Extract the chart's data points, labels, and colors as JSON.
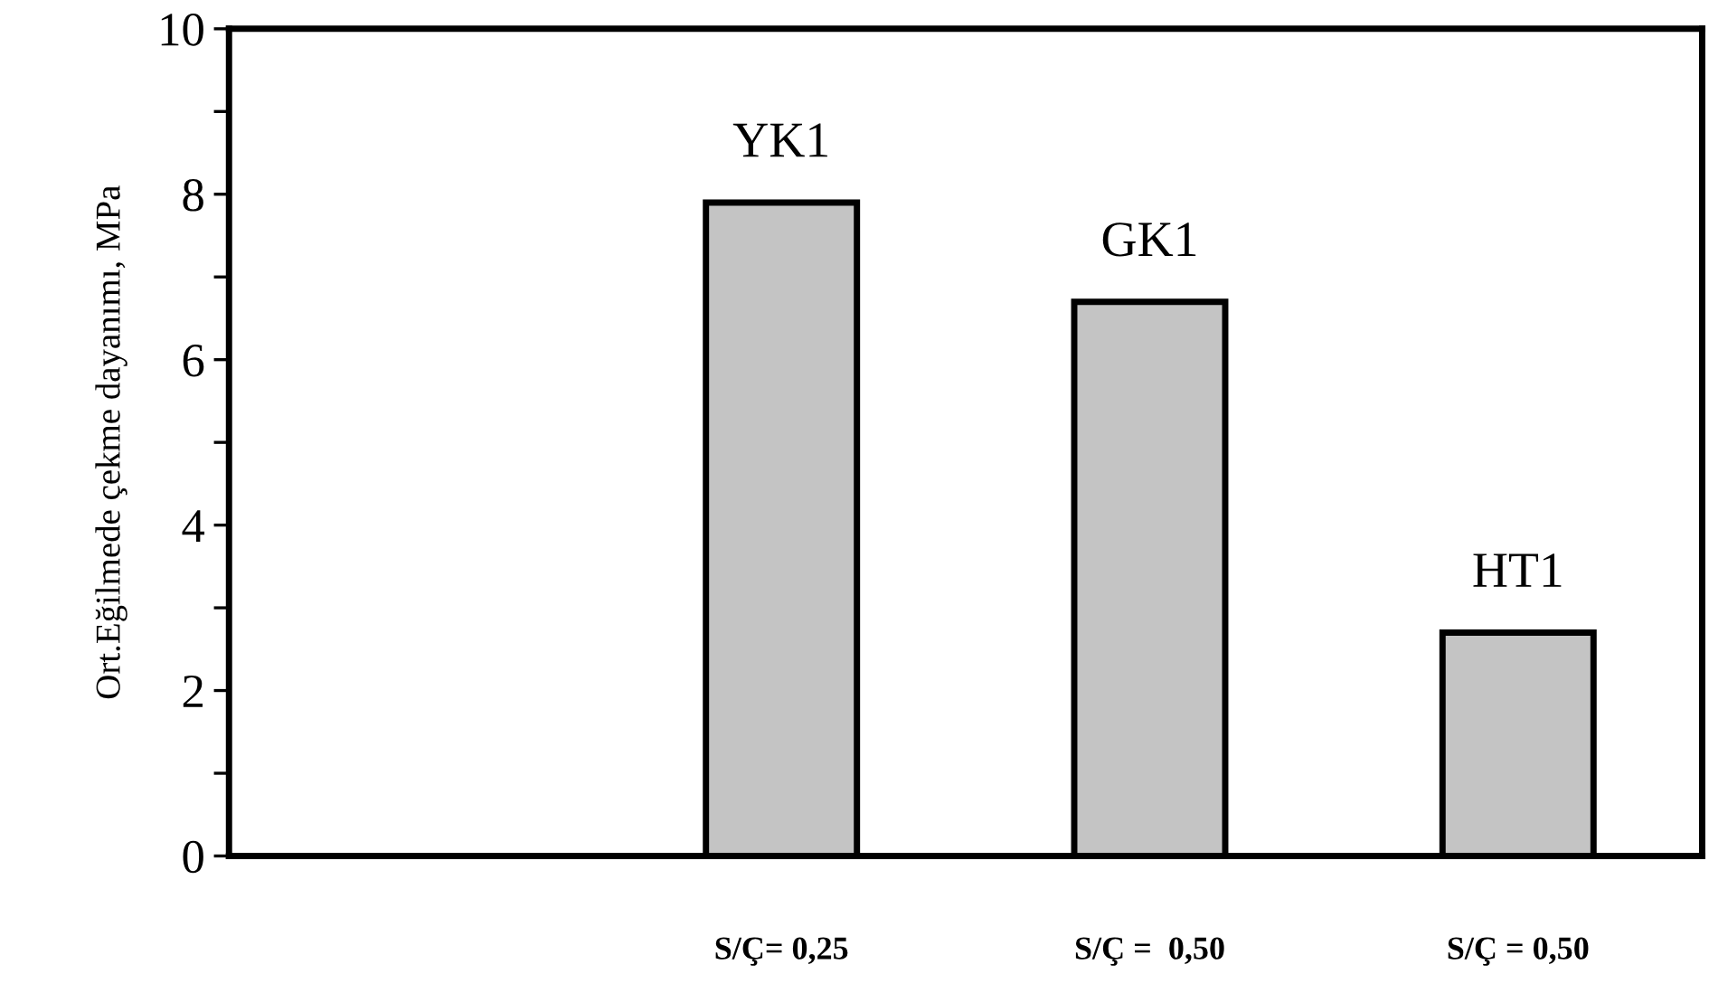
{
  "chart_data": {
    "type": "bar",
    "ylabel": "Ort.Eğilmede çekme dayanımı, MPa",
    "categories": [
      null,
      "S/Ç= 0,25",
      "S/Ç =  0,50",
      "S/Ç = 0,50"
    ],
    "values": [
      null,
      7.9,
      6.7,
      2.7
    ],
    "color": "#c4c4c4",
    "ylim": [
      0,
      10
    ],
    "yticks": [
      0,
      {
        "value": 1,
        "label": null
      },
      2,
      {
        "value": 3,
        "label": null
      },
      4,
      {
        "value": 5,
        "label": null
      },
      6,
      {
        "value": 7,
        "label": null
      },
      8,
      {
        "value": 9,
        "label": null
      },
      10
    ],
    "grid": false,
    "annotations": [
      {
        "text": "YK1",
        "x": "S/Ç= 0,25",
        "y": 7.9
      },
      {
        "text": "GK1",
        "x": "S/Ç =  0,50",
        "y": 6.7
      },
      {
        "text": "HT1",
        "x": "S/Ç = 0,50",
        "y": 2.7
      }
    ]
  }
}
